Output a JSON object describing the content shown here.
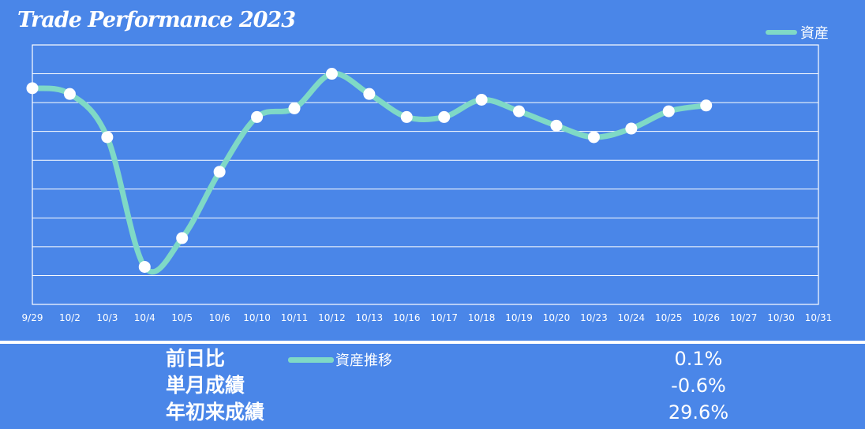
{
  "title": "Trade Performance 2023",
  "colors": {
    "background": "#4a86e8",
    "line": "#7fd9c6",
    "grid": "#ffffff",
    "marker": "#ffffff"
  },
  "chart_data": {
    "type": "line",
    "title": "Trade Performance 2023",
    "categories": [
      "9/29",
      "10/2",
      "10/3",
      "10/4",
      "10/5",
      "10/6",
      "10/10",
      "10/11",
      "10/12",
      "10/13",
      "10/16",
      "10/17",
      "10/18",
      "10/19",
      "10/20",
      "10/23",
      "10/24",
      "10/25",
      "10/26",
      "10/27",
      "10/30",
      "10/31"
    ],
    "series": [
      {
        "name": "資産",
        "values": [
          7.5,
          7.3,
          5.8,
          1.3,
          2.3,
          4.6,
          6.5,
          6.8,
          8.0,
          7.3,
          6.5,
          6.5,
          7.1,
          6.7,
          6.2,
          5.8,
          6.1,
          6.7,
          6.9,
          null,
          null,
          null
        ]
      }
    ],
    "ylim": [
      0,
      9
    ],
    "grid": true,
    "show_y_tick_labels": false,
    "legend": {
      "position": "top-right",
      "label": "資産"
    }
  },
  "legend_bottom": {
    "label": "資産推移"
  },
  "stats": [
    {
      "label": "前日比",
      "value": "0.1%"
    },
    {
      "label": "単月成績",
      "value": "-0.6%"
    },
    {
      "label": "年初来成績",
      "value": "29.6%"
    }
  ]
}
